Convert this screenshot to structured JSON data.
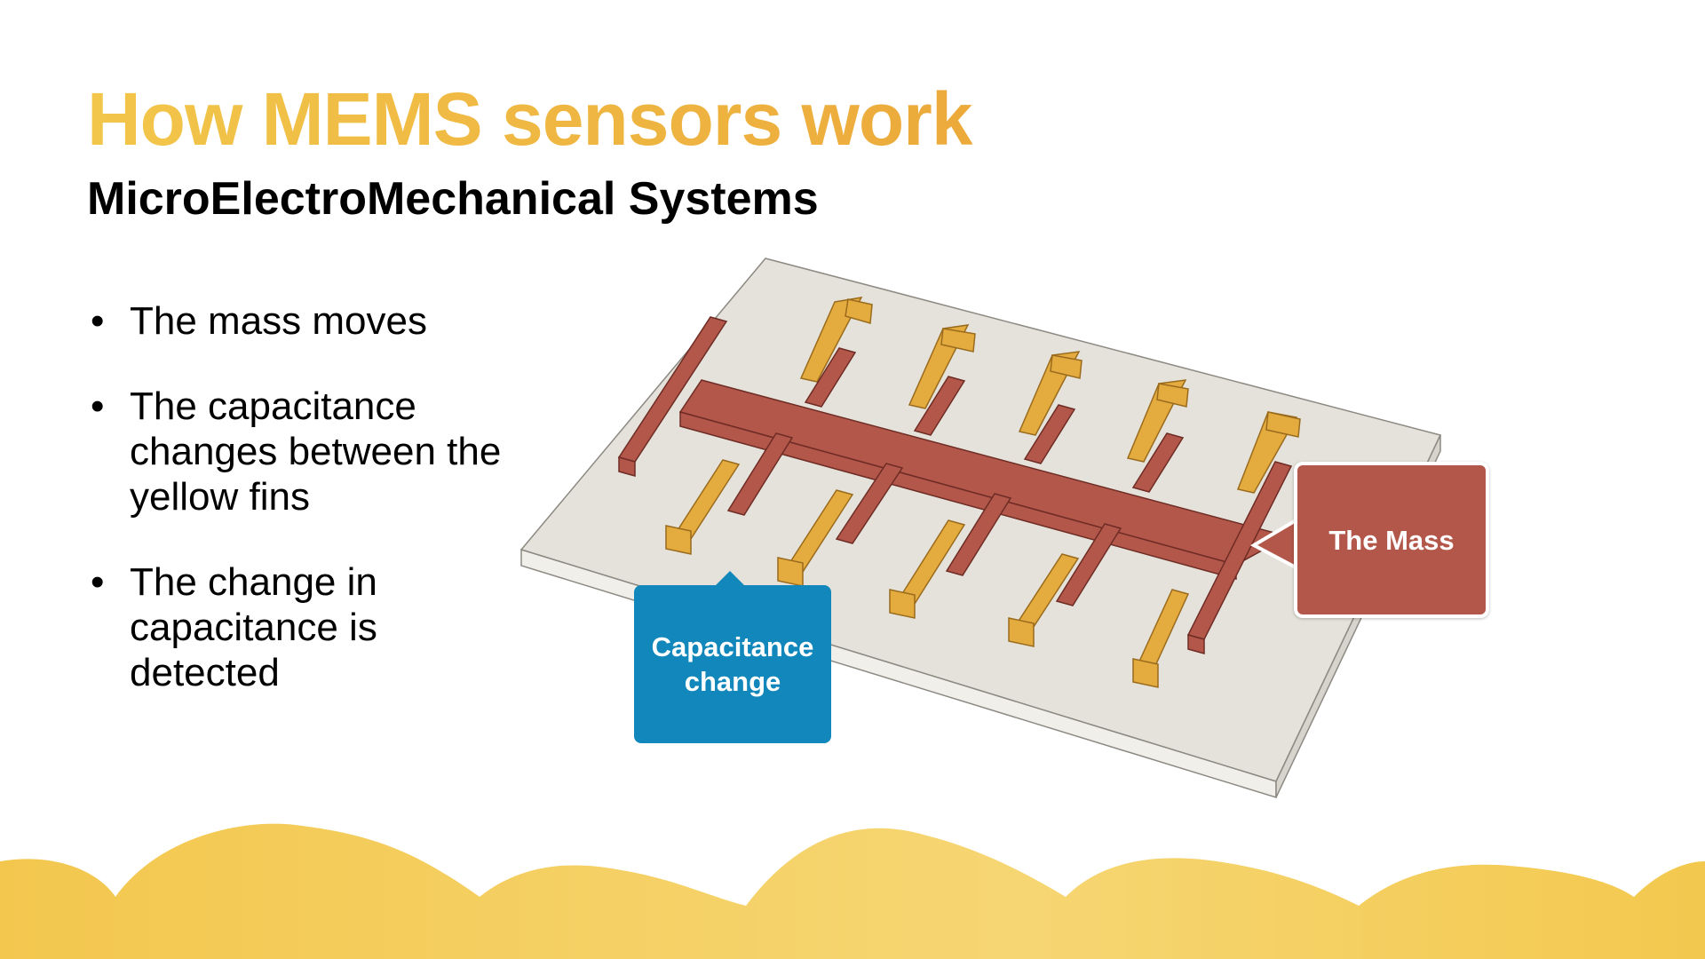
{
  "slide": {
    "title": "How MEMS sensors work",
    "subtitle": "MicroElectroMechanical Systems",
    "bullets": [
      "The mass moves",
      "The capacitance changes between the yellow fins",
      "The change in capacitance is detected"
    ],
    "bullet_symbol": "•"
  },
  "diagram": {
    "callouts": {
      "capacitance": "Capacitance change",
      "mass": "The Mass"
    },
    "colors": {
      "substrate": "#e4e2da",
      "mass": "#b3574b",
      "fins": "#e4ab3f",
      "capacitance_callout": "#1187bb",
      "mass_callout": "#b3574b",
      "title_gradient_start": "#f2c64a",
      "title_gradient_end": "#ecaa3b",
      "waves": "#f3c84e"
    }
  }
}
